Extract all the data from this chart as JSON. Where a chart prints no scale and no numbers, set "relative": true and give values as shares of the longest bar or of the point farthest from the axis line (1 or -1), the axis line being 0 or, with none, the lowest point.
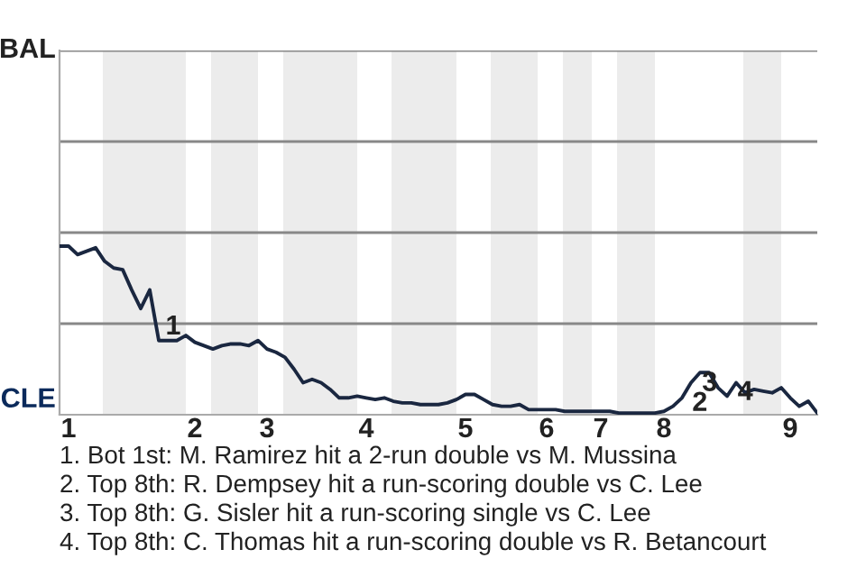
{
  "chart_data": {
    "type": "line",
    "relative": true,
    "categories": [
      null,
      "1",
      null,
      null,
      null,
      null,
      null,
      null,
      null,
      null,
      null,
      null,
      null,
      null,
      null,
      "2",
      null,
      null,
      null,
      null,
      null,
      null,
      null,
      "3",
      null,
      null,
      null,
      null,
      null,
      null,
      null,
      null,
      null,
      null,
      "4",
      null,
      null,
      null,
      null,
      null,
      null,
      null,
      null,
      null,
      null,
      "5",
      null,
      null,
      null,
      null,
      null,
      null,
      null,
      null,
      "6",
      null,
      null,
      null,
      null,
      null,
      "7",
      null,
      null,
      null,
      null,
      null,
      null,
      "8",
      null,
      null,
      null,
      null,
      null,
      null,
      null,
      null,
      null,
      null,
      null,
      null,
      null,
      "9",
      null,
      null,
      null
    ],
    "series": [
      {
        "values": [
          1,
          1,
          0.95,
          0.97,
          0.99,
          0.91,
          0.87,
          0.86,
          0.74,
          0.63,
          0.74,
          0.44,
          0.44,
          0.44,
          0.47,
          0.43,
          0.41,
          0.39,
          0.41,
          0.42,
          0.42,
          0.41,
          0.44,
          0.39,
          0.37,
          0.34,
          0.27,
          0.19,
          0.21,
          0.19,
          0.15,
          0.1,
          0.1,
          0.11,
          0.1,
          0.09,
          0.1,
          0.08,
          0.07,
          0.07,
          0.06,
          0.06,
          0.06,
          0.07,
          0.09,
          0.12,
          0.12,
          0.09,
          0.06,
          0.05,
          0.05,
          0.06,
          0.03,
          0.03,
          0.03,
          0.03,
          0.02,
          0.02,
          0.02,
          0.02,
          0.02,
          0.02,
          0.01,
          0.01,
          0.01,
          0.01,
          0.01,
          0.02,
          0.05,
          0.1,
          0.19,
          0.25,
          0.25,
          0.16,
          0.11,
          0.19,
          0.13,
          0.15,
          0.14,
          0.13,
          0.16,
          0.1,
          0.05,
          0.08,
          0.01
        ],
        "color": "#1a2740"
      }
    ],
    "ref_lines": [
      {
        "axis": "y",
        "value": 0.54,
        "color": "#888888"
      },
      {
        "axis": "y",
        "value": 1.08,
        "color": "#888888"
      },
      {
        "axis": "y",
        "value": 1.62,
        "color": "#888888"
      },
      {
        "axis": "y",
        "value": 2.16,
        "color": "#888888"
      }
    ],
    "annotations": [
      "BAL",
      "CLE",
      "1",
      "2",
      "3",
      "4",
      "1. Bot 1st: M. Ramirez hit a 2-run double vs M. Mussina",
      "2. Top 8th: R. Dempsey hit a run-scoring double vs C. Lee",
      "3. Top 8th: G. Sisler hit a run-scoring single vs C. Lee",
      "4. Top 8th: C. Thomas hit a run-scoring double vs R. Betancourt"
    ]
  }
}
